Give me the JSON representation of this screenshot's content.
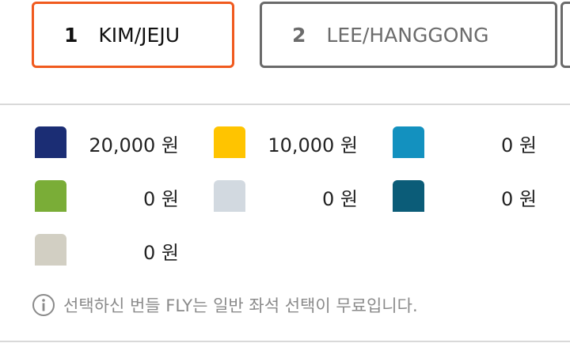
{
  "tabs": [
    {
      "number": "1",
      "label": "KIM/JEJU",
      "active": true
    },
    {
      "number": "2",
      "label": "LEE/HANGGONG",
      "active": false
    }
  ],
  "colors": {
    "active_border": "#f05a1e",
    "inactive_border": "#6a6a6a"
  },
  "fares": [
    {
      "color": "#1b2d74",
      "price": "20,000 원"
    },
    {
      "color": "#ffc400",
      "price": "10,000 원"
    },
    {
      "color": "#1391bf",
      "price": "0 원"
    },
    {
      "color": "#7aad37",
      "price": "0 원"
    },
    {
      "color": "#d2d9e0",
      "price": "0 원"
    },
    {
      "color": "#0b5c78",
      "price": "0 원"
    },
    {
      "color": "#d2cfc3",
      "price": "0 원"
    }
  ],
  "notice": {
    "icon": "info-icon",
    "text": "선택하신 번들 FLY는 일반 좌석 선택이 무료입니다."
  }
}
